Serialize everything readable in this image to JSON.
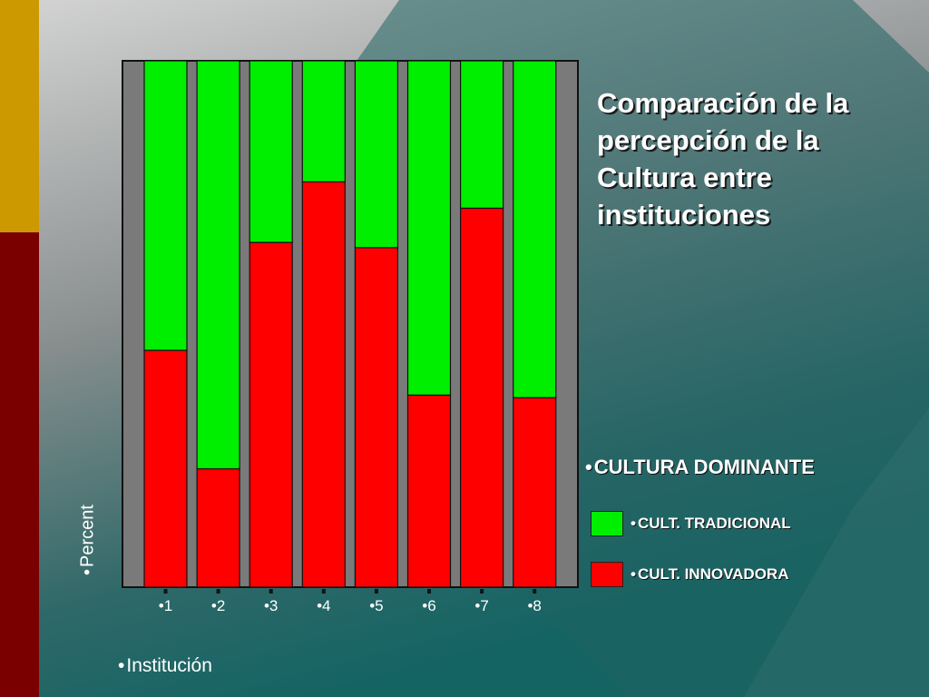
{
  "slide": {
    "title_lines": [
      "Comparación de la",
      "percepción de la",
      "Cultura entre",
      "instituciones"
    ],
    "bullet": "•"
  },
  "colors": {
    "tradicional": "#00ee00",
    "innovadora": "#ff0000",
    "plot_background": "#7a7a7a",
    "gold_strip": "#cc9900",
    "maroon_strip": "#7a0000"
  },
  "chart_data": {
    "type": "bar",
    "stacked": true,
    "xlabel": "Institución",
    "ylabel": "Percent",
    "categories": [
      "1",
      "2",
      "3",
      "4",
      "5",
      "6",
      "7",
      "8"
    ],
    "ylim": [
      0,
      100
    ],
    "grid": false,
    "legend": {
      "title": "CULTURA DOMINANTE",
      "placement": "right",
      "entries": [
        "CULT. TRADICIONAL",
        "CULT. INNOVADORA"
      ]
    },
    "series": [
      {
        "name": "CULT. INNOVADORA",
        "color": "#ff0000",
        "values": [
          45,
          22.5,
          65.5,
          77,
          64.5,
          36.5,
          72,
          36
        ]
      },
      {
        "name": "CULT. TRADICIONAL",
        "color": "#00ee00",
        "values": [
          55,
          77.5,
          34.5,
          23,
          35.5,
          63.5,
          28,
          64
        ]
      }
    ]
  }
}
